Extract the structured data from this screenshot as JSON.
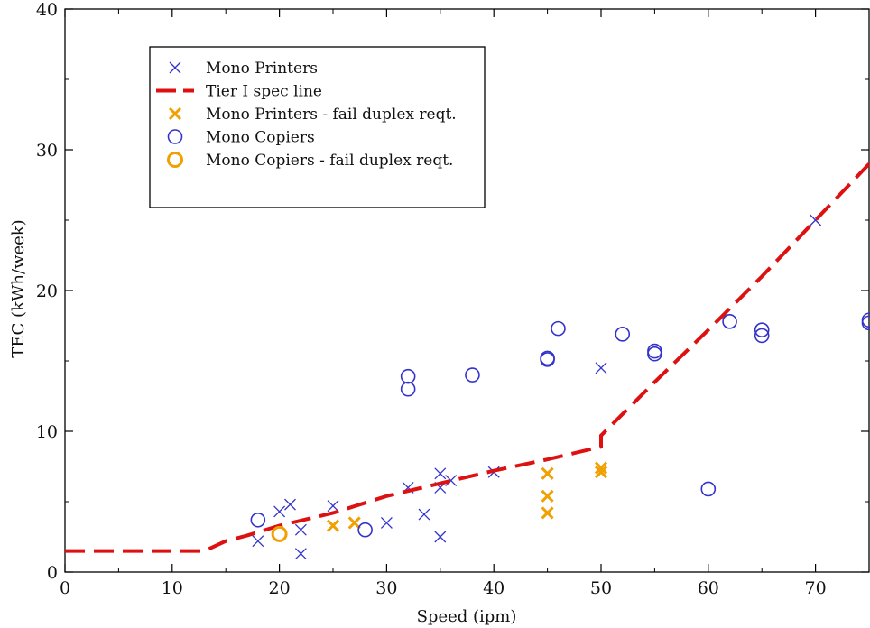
{
  "chart_data": {
    "type": "scatter",
    "title": "",
    "xlabel": "Speed (ipm)",
    "ylabel": "TEC (kWh/week)",
    "xlim": [
      0,
      75
    ],
    "ylim": [
      0,
      40
    ],
    "x_ticks": [
      0,
      10,
      20,
      30,
      40,
      50,
      60,
      70
    ],
    "y_ticks": [
      0,
      10,
      20,
      30,
      40
    ],
    "grid": false,
    "legend_position": "top-left",
    "series": [
      {
        "name": "Mono Printers",
        "marker": "x",
        "color": "#3333cc",
        "points": [
          [
            18,
            2.2
          ],
          [
            20,
            4.3
          ],
          [
            21,
            4.8
          ],
          [
            22,
            3.0
          ],
          [
            22,
            1.3
          ],
          [
            25,
            4.7
          ],
          [
            30,
            3.5
          ],
          [
            32,
            6.0
          ],
          [
            33.5,
            4.1
          ],
          [
            35,
            7.0
          ],
          [
            35,
            6.0
          ],
          [
            35,
            2.5
          ],
          [
            36,
            6.5
          ],
          [
            40,
            7.1
          ],
          [
            50,
            14.5
          ],
          [
            70,
            25.0
          ]
        ]
      },
      {
        "name": "Tier I spec line",
        "marker": "dashed-line",
        "color": "#dd1111",
        "points": [
          [
            0,
            1.5
          ],
          [
            13,
            1.5
          ],
          [
            15,
            2.2
          ],
          [
            17,
            2.6
          ],
          [
            20,
            3.3
          ],
          [
            25,
            4.2
          ],
          [
            30,
            5.4
          ],
          [
            35,
            6.3
          ],
          [
            40,
            7.2
          ],
          [
            45,
            8.0
          ],
          [
            50,
            8.9
          ],
          [
            50,
            9.7
          ],
          [
            55,
            13.5
          ],
          [
            60,
            17.2
          ],
          [
            65,
            21.0
          ],
          [
            70,
            25.0
          ],
          [
            75,
            29.0
          ]
        ]
      },
      {
        "name": "Mono Printers - fail duplex reqt.",
        "marker": "x-bold",
        "color": "#f0a000",
        "points": [
          [
            25,
            3.3
          ],
          [
            27,
            3.5
          ],
          [
            45,
            7.0
          ],
          [
            45,
            5.4
          ],
          [
            45,
            4.2
          ],
          [
            50,
            7.4
          ],
          [
            50,
            7.1
          ]
        ]
      },
      {
        "name": "Mono Copiers",
        "marker": "circle",
        "color": "#3333cc",
        "points": [
          [
            18,
            3.7
          ],
          [
            28,
            3.0
          ],
          [
            32,
            13.9
          ],
          [
            32,
            13.0
          ],
          [
            38,
            14.0
          ],
          [
            45,
            15.2
          ],
          [
            45,
            15.1
          ],
          [
            46,
            17.3
          ],
          [
            52,
            16.9
          ],
          [
            55,
            15.7
          ],
          [
            55,
            15.5
          ],
          [
            60,
            5.9
          ],
          [
            62,
            17.8
          ],
          [
            65,
            17.2
          ],
          [
            65,
            16.8
          ],
          [
            75,
            17.9
          ],
          [
            75,
            17.7
          ]
        ]
      },
      {
        "name": "Mono Copiers - fail duplex reqt.",
        "marker": "circle-bold",
        "color": "#f0a000",
        "points": [
          [
            20,
            2.7
          ]
        ]
      }
    ]
  }
}
